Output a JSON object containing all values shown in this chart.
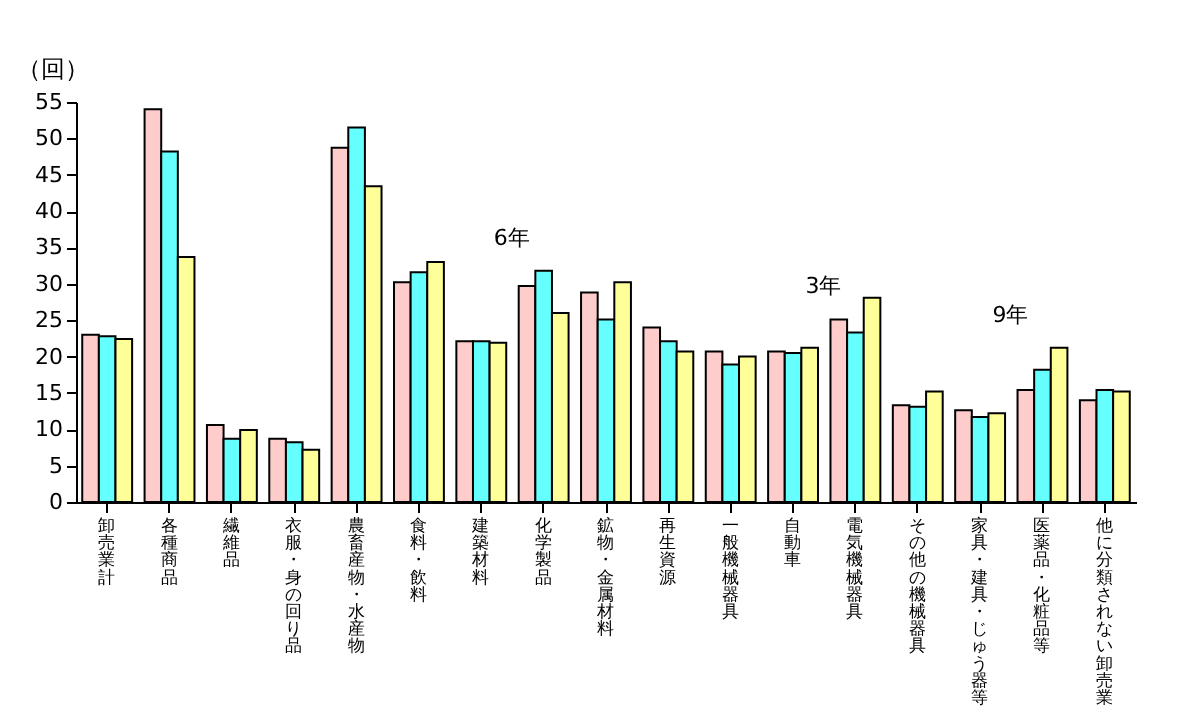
{
  "chart_data": {
    "type": "bar",
    "ylabel": "（回）",
    "categories": [
      "卸売業計",
      "各種商品",
      "繊維品",
      "衣服・身の回り品",
      "農畜産物・水産物",
      "食料・飲料",
      "建築材料",
      "化学製品",
      "鉱物・金属材料",
      "再生資源",
      "一般機械器具",
      "自動車",
      "電気機械器具",
      "その他の機械器具",
      "家具・建具・じゅう器等",
      "医薬品・化粧品等",
      "他に分類されない卸売業"
    ],
    "series": [
      {
        "color": "#ffcccc",
        "values": [
          23.0,
          54.0,
          10.6,
          8.7,
          48.7,
          30.2,
          22.1,
          29.7,
          28.8,
          24.0,
          20.7,
          20.7,
          25.1,
          13.3,
          12.6,
          15.4,
          14.0
        ]
      },
      {
        "color": "#66ffff",
        "values": [
          22.8,
          48.2,
          8.7,
          8.2,
          51.5,
          31.6,
          22.1,
          31.8,
          25.1,
          22.1,
          18.9,
          20.5,
          23.3,
          13.1,
          11.7,
          18.2,
          15.4
        ]
      },
      {
        "color": "#ffff99",
        "values": [
          22.4,
          33.7,
          9.9,
          7.2,
          43.4,
          33.0,
          21.9,
          26.0,
          30.2,
          20.7,
          20.0,
          21.2,
          28.1,
          15.2,
          12.2,
          21.2,
          15.2
        ]
      }
    ],
    "annotations": [
      {
        "text": "6年",
        "x": "化学製品",
        "y": 31.8
      },
      {
        "text": "3年",
        "x": "電気機械器具",
        "y": 25.1
      },
      {
        "text": "9年",
        "x": "医薬品・化粧品等",
        "y": 21.2
      }
    ],
    "ylim": [
      0,
      55
    ],
    "yticks": [
      0,
      5,
      10,
      15,
      20,
      25,
      30,
      35,
      40,
      45,
      50,
      55
    ],
    "grid": false,
    "legend": false
  }
}
